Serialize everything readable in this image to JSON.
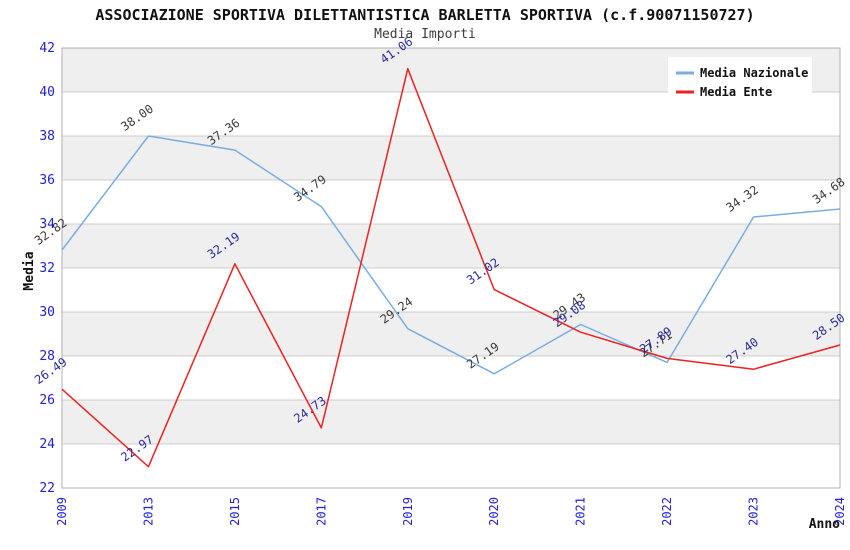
{
  "header": {
    "title": "ASSOCIAZIONE SPORTIVA DILETTANTISTICA BARLETTA SPORTIVA (c.f.90071150727)",
    "subtitle": "Media Importi"
  },
  "legend": {
    "items": [
      {
        "label": "Media Nazionale",
        "color": "#79ade2"
      },
      {
        "label": "Media Ente",
        "color": "#ee2222"
      }
    ],
    "position": "top-right",
    "background": "#ffffff"
  },
  "chart_data": {
    "type": "line",
    "title": "ASSOCIAZIONE SPORTIVA DILETTANTISTICA BARLETTA SPORTIVA (c.f.90071150727)",
    "subtitle": "Media Importi",
    "categories": [
      "2009",
      "2013",
      "2015",
      "2017",
      "2019",
      "2020",
      "2021",
      "2022",
      "2023",
      "2024"
    ],
    "series": [
      {
        "name": "Media Nazionale",
        "color": "#79ade2",
        "label_color": "#3a3a3a",
        "values": [
          32.82,
          38.0,
          37.36,
          34.79,
          29.24,
          27.19,
          29.43,
          27.71,
          34.32,
          34.68
        ]
      },
      {
        "name": "Media Ente",
        "color": "#ee2222",
        "label_color": "#2b2b9e",
        "values": [
          26.49,
          22.97,
          32.19,
          24.73,
          41.06,
          31.02,
          29.08,
          27.89,
          27.4,
          28.5
        ]
      }
    ],
    "xlabel": "Anno",
    "ylabel": "Media",
    "ylim": [
      22,
      42
    ],
    "ytick_step": 2,
    "y_ticks": [
      22,
      24,
      26,
      28,
      30,
      32,
      34,
      36,
      38,
      40,
      42
    ],
    "grid": true,
    "legend_position": "top-right",
    "band_colors": [
      "#efefef",
      "#ffffff"
    ],
    "gridline_color": "#cccccc",
    "plot_border_color": "#b0b0b0",
    "tick_label_color": "#2222d4",
    "value_labels_decimals": 2
  }
}
